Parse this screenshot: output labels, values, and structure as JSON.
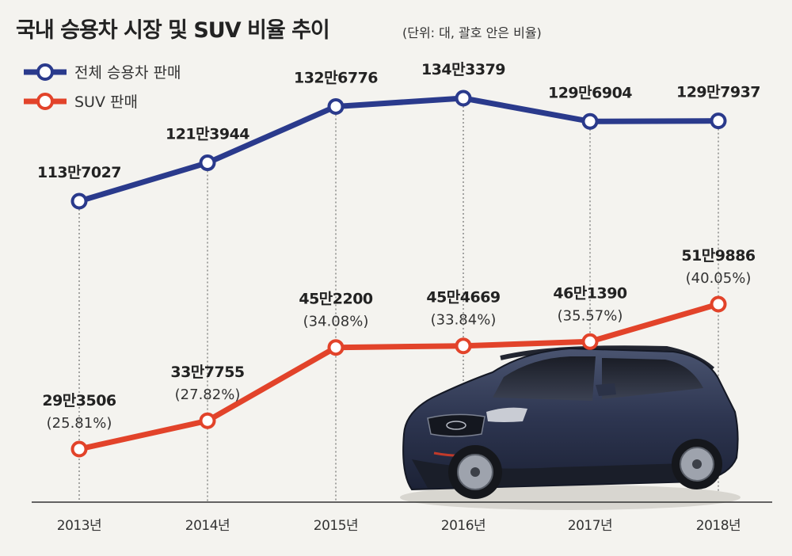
{
  "header": {
    "title": "국내 승용차 시장 및 SUV 비율 추이",
    "unit_note": "(단위: 대, 괄호 안은 비율)"
  },
  "colors": {
    "total": "#2a3a8c",
    "suv": "#e2432a",
    "grid": "#555555",
    "background": "#f4f3ef"
  },
  "chart_data": {
    "type": "line",
    "title": "국내 승용차 시장 및 SUV 비율 추이",
    "unit": "(단위: 대, 괄호 안은 비율)",
    "categories": [
      "2013년",
      "2014년",
      "2015년",
      "2016년",
      "2017년",
      "2018년"
    ],
    "series": [
      {
        "name": "전체 승용차 판매",
        "values": [
          1137027,
          1213944,
          1326776,
          1343379,
          1296904,
          1297937
        ],
        "labels": [
          "113만7027",
          "121만3944",
          "132만6776",
          "134만3379",
          "129만6904",
          "129만7937"
        ]
      },
      {
        "name": "SUV 판매",
        "values": [
          293506,
          337755,
          452200,
          454669,
          461390,
          519886
        ],
        "labels": [
          "29만3506",
          "33만7755",
          "45만2200",
          "45만4669",
          "46만1390",
          "51만9886"
        ],
        "ratios": [
          "(25.81%)",
          "(27.82%)",
          "(34.08%)",
          "(33.84%)",
          "(35.57%)",
          "(40.05%)"
        ]
      }
    ],
    "legend_position": "top-left",
    "grid": "vertical dotted"
  }
}
